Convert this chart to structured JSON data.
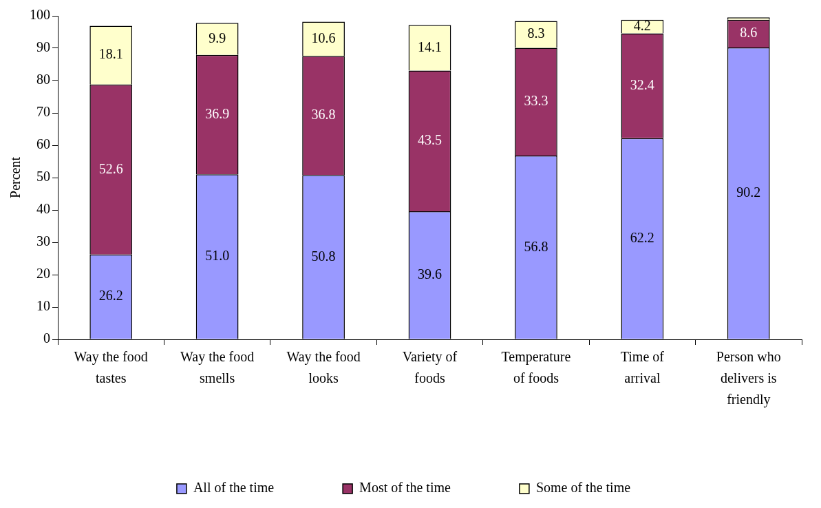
{
  "chart_data": {
    "type": "bar",
    "stacked": true,
    "ylabel": "Percent",
    "categories": [
      "Way the food tastes",
      "Way the food smells",
      "Way the food looks",
      "Variety of foods",
      "Temperature of foods",
      "Time of arrival",
      "Person who delivers is friendly"
    ],
    "series": [
      {
        "name": "All of the time",
        "color": "#9999ff",
        "values": [
          26.2,
          51.0,
          50.8,
          39.6,
          56.8,
          62.2,
          90.2
        ],
        "value_labels": [
          "26.2",
          "51.0",
          "50.8",
          "39.6",
          "56.8",
          "62.2",
          "90.2"
        ]
      },
      {
        "name": "Most of the time",
        "color": "#993366",
        "values": [
          52.6,
          36.9,
          36.8,
          43.5,
          33.3,
          32.4,
          8.6
        ],
        "value_labels": [
          "52.6",
          "36.9",
          "36.8",
          "43.5",
          "33.3",
          "32.4",
          "8.6"
        ]
      },
      {
        "name": "Some of the time",
        "color": "#ffffcc",
        "values": [
          18.1,
          9.9,
          10.6,
          14.1,
          8.3,
          4.2,
          0.7
        ],
        "value_labels": [
          "18.1",
          "9.9",
          "10.6",
          "14.1",
          "8.3",
          "4.2",
          null
        ]
      }
    ],
    "ylim": [
      0,
      100
    ],
    "yticks": [
      0,
      10,
      20,
      30,
      40,
      50,
      60,
      70,
      80,
      90,
      100
    ],
    "grid": false,
    "legend": "bottom"
  }
}
